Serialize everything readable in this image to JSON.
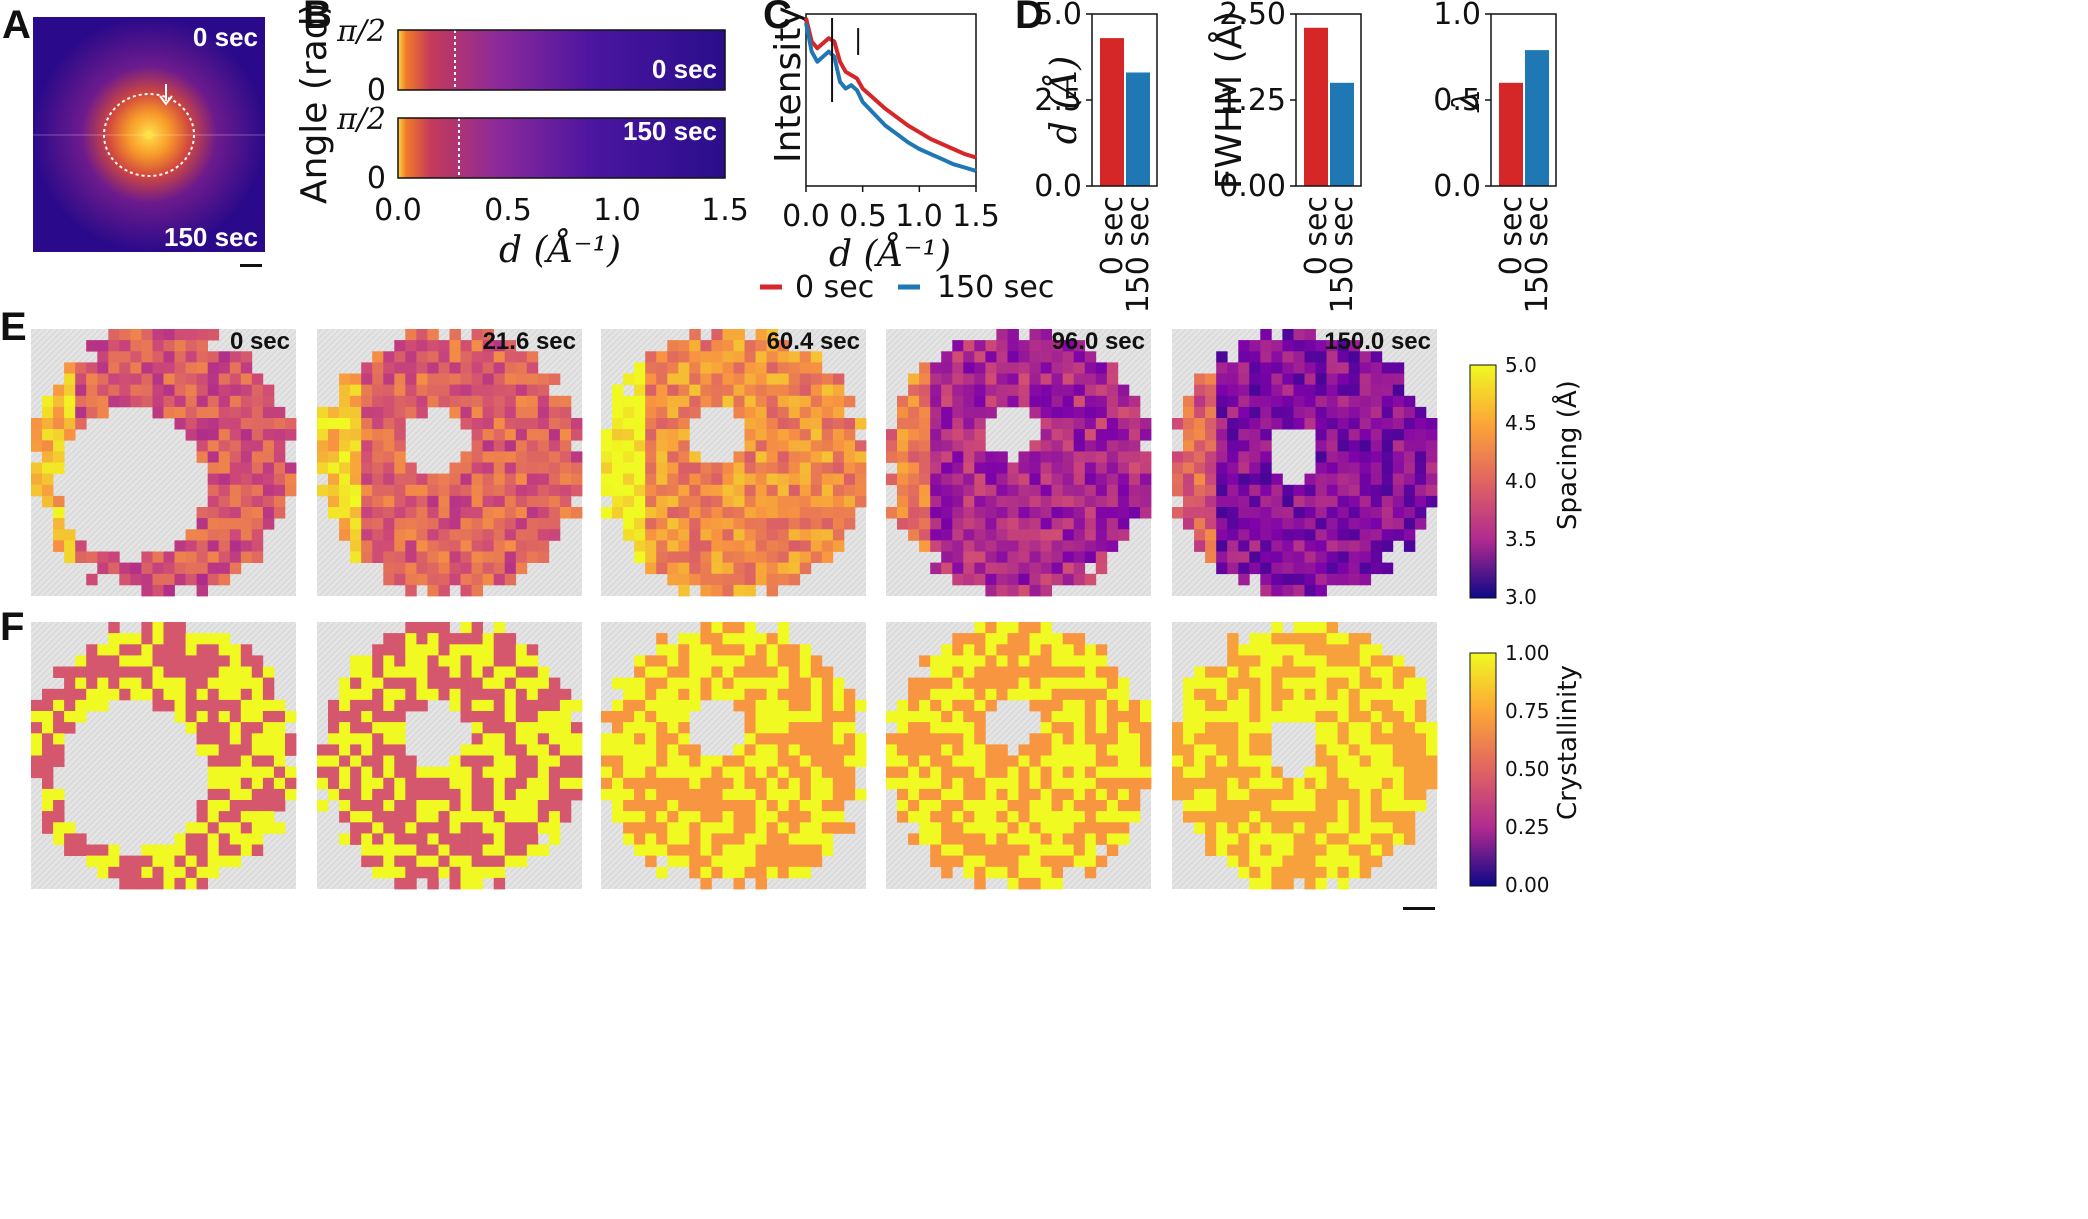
{
  "panel_labels": [
    "A",
    "B",
    "C",
    "D",
    "E",
    "F"
  ],
  "colors": {
    "red": "#d62728",
    "blue": "#1f77b4"
  },
  "panelA": {
    "top_label": "0 sec",
    "bottom_label": "150 sec"
  },
  "panelB": {
    "ylabel": "Angle (rad)",
    "xlabel": "d (Å⁻¹)",
    "ytick_top": "π/2",
    "ytick_bottom": "0",
    "xticks": [
      "0.0",
      "0.5",
      "1.0",
      "1.5"
    ],
    "top_label": "0 sec",
    "bottom_label": "150 sec"
  },
  "panelC": {
    "ylabel": "Intensity",
    "xlabel": "d (Å⁻¹)",
    "xticks": [
      "0.0",
      "0.5",
      "1.0",
      "1.5"
    ]
  },
  "legend": [
    {
      "label": "0 sec",
      "color": "#d62728"
    },
    {
      "label": "150 sec",
      "color": "#1f77b4"
    }
  ],
  "panelE": {
    "times": [
      "0 sec",
      "21.6 sec",
      "60.4 sec",
      "96.0 sec",
      "150.0 sec"
    ],
    "colorbar_label": "Spacing (Å)",
    "colorbar_ticks": [
      "5.0",
      "4.5",
      "4.0",
      "3.5",
      "3.0"
    ]
  },
  "panelF": {
    "colorbar_label": "Crystallinity",
    "colorbar_ticks": [
      "1.00",
      "0.75",
      "0.50",
      "0.25",
      "0.00"
    ]
  },
  "chart_data": [
    {
      "type": "line",
      "panel": "C",
      "xlabel": "d (Å⁻¹)",
      "ylabel": "Intensity",
      "xlim": [
        0,
        1.5
      ],
      "series": [
        {
          "name": "0 sec",
          "color": "#d62728",
          "x": [
            0.0,
            0.05,
            0.1,
            0.15,
            0.2,
            0.25,
            0.3,
            0.35,
            0.4,
            0.45,
            0.5,
            0.6,
            0.7,
            0.8,
            0.9,
            1.0,
            1.1,
            1.2,
            1.3,
            1.4,
            1.5
          ],
          "y": [
            1.0,
            0.86,
            0.82,
            0.85,
            0.88,
            0.86,
            0.74,
            0.68,
            0.66,
            0.64,
            0.58,
            0.52,
            0.46,
            0.41,
            0.36,
            0.32,
            0.28,
            0.25,
            0.22,
            0.19,
            0.17
          ]
        },
        {
          "name": "150 sec",
          "color": "#1f77b4",
          "x": [
            0.0,
            0.05,
            0.1,
            0.15,
            0.2,
            0.25,
            0.3,
            0.35,
            0.4,
            0.45,
            0.5,
            0.6,
            0.7,
            0.8,
            0.9,
            1.0,
            1.1,
            1.2,
            1.3,
            1.4,
            1.5
          ],
          "y": [
            0.97,
            0.8,
            0.74,
            0.77,
            0.8,
            0.77,
            0.62,
            0.58,
            0.6,
            0.57,
            0.5,
            0.43,
            0.36,
            0.31,
            0.26,
            0.22,
            0.19,
            0.16,
            0.13,
            0.11,
            0.09
          ]
        }
      ]
    },
    {
      "type": "bar",
      "panel": "D",
      "ylabel": "d (Å)",
      "categories": [
        "0 sec",
        "150 sec"
      ],
      "values": [
        4.3,
        3.3
      ],
      "ylim": [
        0,
        5
      ],
      "yticks": [
        "0.0",
        "2.5",
        "5.0"
      ],
      "colors": [
        "#d62728",
        "#1f77b4"
      ]
    },
    {
      "type": "bar",
      "panel": "D",
      "ylabel": "FWHM (Å)",
      "categories": [
        "0 sec",
        "150 sec"
      ],
      "values": [
        2.3,
        1.5
      ],
      "ylim": [
        0,
        2.5
      ],
      "yticks": [
        "0.00",
        "1.25",
        "2.50"
      ],
      "colors": [
        "#d62728",
        "#1f77b4"
      ]
    },
    {
      "type": "bar",
      "panel": "D",
      "ylabel": "λ",
      "categories": [
        "0 sec",
        "150 sec"
      ],
      "values": [
        0.6,
        0.79
      ],
      "ylim": [
        0,
        1
      ],
      "yticks": [
        "0.0",
        "0.5",
        "1.0"
      ],
      "colors": [
        "#d62728",
        "#1f77b4"
      ]
    }
  ]
}
